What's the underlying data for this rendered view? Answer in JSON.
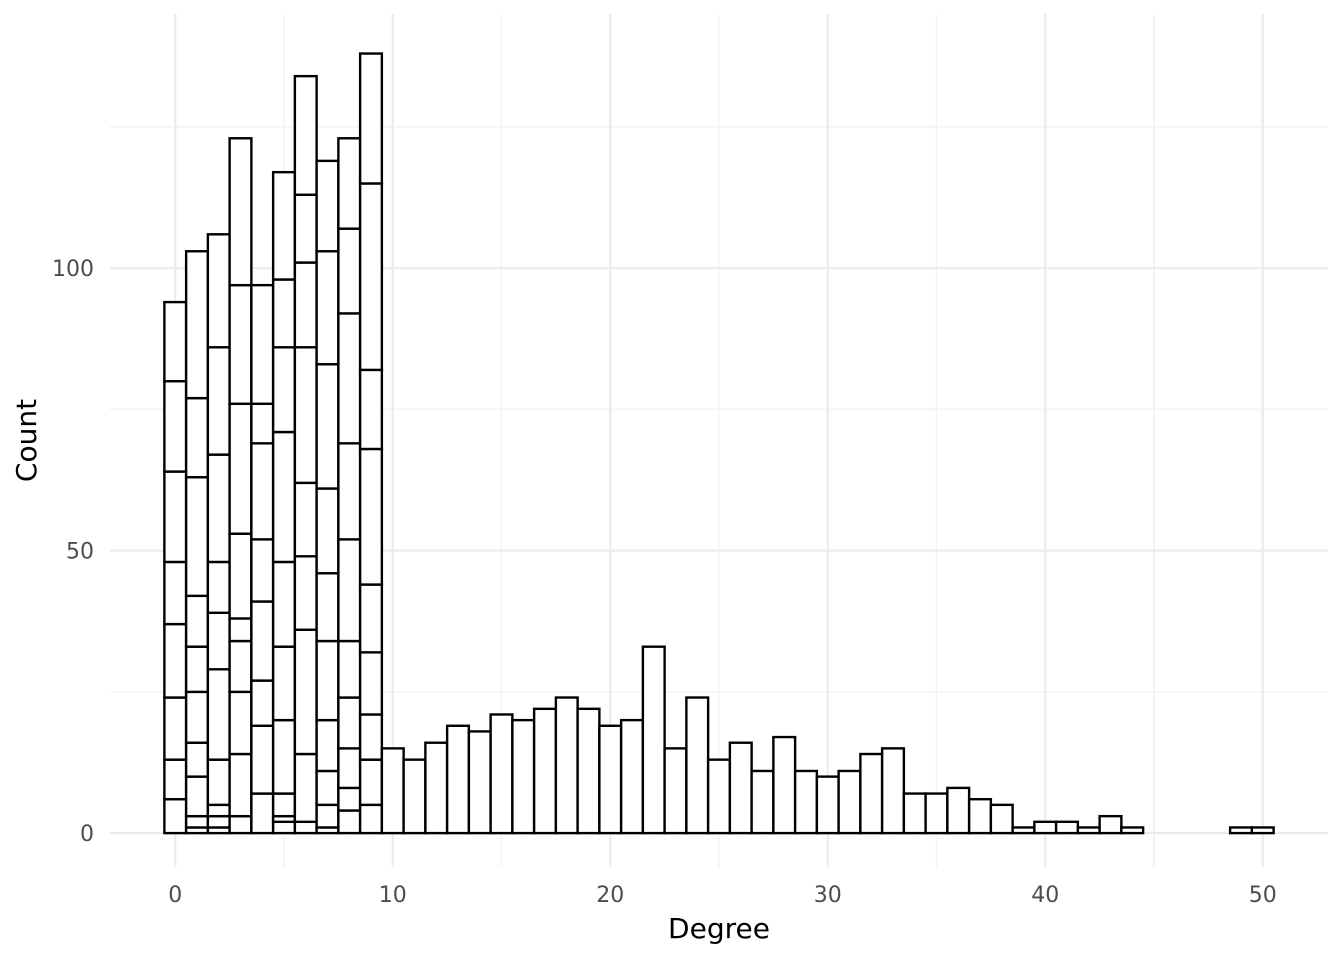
{
  "chart_data": {
    "type": "bar",
    "subtype": "stacked-histogram",
    "title": "",
    "xlabel": "Degree",
    "ylabel": "Count",
    "xlim": [
      -3,
      53
    ],
    "ylim": [
      -6,
      145
    ],
    "x_ticks": [
      0,
      10,
      20,
      30,
      40,
      50
    ],
    "y_ticks": [
      0,
      50,
      100
    ],
    "grid": true,
    "legend": "none",
    "bar_fill": "#ffffff",
    "bar_stroke": "#000000",
    "stacked_boundaries": [
      {
        "x": 0,
        "values": [
          6,
          13,
          24,
          37,
          48,
          64,
          80,
          94
        ]
      },
      {
        "x": 1,
        "values": [
          1,
          3,
          10,
          16,
          25,
          33,
          42,
          63,
          77,
          103
        ]
      },
      {
        "x": 2,
        "values": [
          1,
          3,
          5,
          13,
          29,
          39,
          48,
          67,
          86,
          106
        ]
      },
      {
        "x": 3,
        "values": [
          3,
          14,
          25,
          34,
          38,
          53,
          76,
          97,
          123
        ]
      },
      {
        "x": 4,
        "values": [
          7,
          19,
          27,
          41,
          52,
          69,
          76,
          97
        ]
      },
      {
        "x": 5,
        "values": [
          2,
          3,
          7,
          20,
          33,
          48,
          71,
          86,
          98,
          117
        ]
      },
      {
        "x": 6,
        "values": [
          2,
          14,
          36,
          49,
          62,
          86,
          101,
          113,
          134
        ]
      },
      {
        "x": 7,
        "values": [
          1,
          5,
          11,
          20,
          34,
          46,
          61,
          83,
          103,
          119
        ]
      },
      {
        "x": 8,
        "values": [
          4,
          8,
          15,
          24,
          34,
          52,
          69,
          92,
          107,
          123
        ]
      },
      {
        "x": 9,
        "values": [
          5,
          13,
          21,
          32,
          44,
          68,
          82,
          115,
          138
        ]
      }
    ],
    "bars": [
      {
        "x": 10,
        "value": 15
      },
      {
        "x": 11,
        "value": 13
      },
      {
        "x": 12,
        "value": 16
      },
      {
        "x": 13,
        "value": 19
      },
      {
        "x": 14,
        "value": 18
      },
      {
        "x": 15,
        "value": 21
      },
      {
        "x": 16,
        "value": 20
      },
      {
        "x": 17,
        "value": 22
      },
      {
        "x": 18,
        "value": 24
      },
      {
        "x": 19,
        "value": 22
      },
      {
        "x": 20,
        "value": 19
      },
      {
        "x": 21,
        "value": 20
      },
      {
        "x": 22,
        "value": 33
      },
      {
        "x": 23,
        "value": 15
      },
      {
        "x": 24,
        "value": 24
      },
      {
        "x": 25,
        "value": 13
      },
      {
        "x": 26,
        "value": 16
      },
      {
        "x": 27,
        "value": 11
      },
      {
        "x": 28,
        "value": 17
      },
      {
        "x": 29,
        "value": 11
      },
      {
        "x": 30,
        "value": 10
      },
      {
        "x": 31,
        "value": 11
      },
      {
        "x": 32,
        "value": 14
      },
      {
        "x": 33,
        "value": 15
      },
      {
        "x": 34,
        "value": 7
      },
      {
        "x": 35,
        "value": 7
      },
      {
        "x": 36,
        "value": 8
      },
      {
        "x": 37,
        "value": 6
      },
      {
        "x": 38,
        "value": 5
      },
      {
        "x": 39,
        "value": 1
      },
      {
        "x": 40,
        "value": 2
      },
      {
        "x": 41,
        "value": 2
      },
      {
        "x": 42,
        "value": 1
      },
      {
        "x": 43,
        "value": 3
      },
      {
        "x": 44,
        "value": 1
      },
      {
        "x": 49,
        "value": 1
      },
      {
        "x": 50,
        "value": 1
      }
    ]
  }
}
